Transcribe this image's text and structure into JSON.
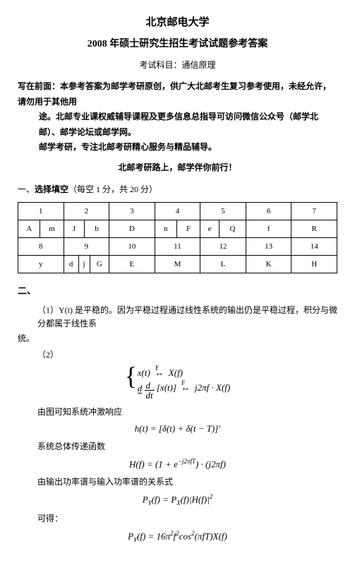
{
  "header": {
    "university": "北京邮电大学",
    "title": "2008 年硕士研究生招生考试试题参考答案",
    "subject_label": "考试科目：",
    "subject": "通信原理"
  },
  "preface": {
    "line1": "写在前面：本参考答案为邮学考研原创，供广大北邮考生复习参考使用，未经允许，请勿用于其他用",
    "line2": "途。北邮专业课权威辅导课程及更多信息总指导可访问微信公众号（邮学北邮）、邮学论坛或邮学网。",
    "line3": "邮学考研，专注北邮考研精心服务与精品辅导。",
    "slogan": "北邮考研路上，邮学伴你前行！"
  },
  "section1": {
    "heading_prefix": "一、",
    "heading_bold": "选择填空",
    "heading_suffix": "（每空 1 分，共 20 分）",
    "rows": [
      [
        {
          "num": "1",
          "subs": []
        },
        {
          "num": "2",
          "subs": []
        },
        {
          "num": "3",
          "subs": []
        },
        {
          "num": "4",
          "subs": []
        },
        {
          "num": "5",
          "subs": []
        },
        {
          "num": "6",
          "subs": []
        },
        {
          "num": "7",
          "subs": []
        }
      ],
      [
        {
          "num": "A",
          "subs": [
            "m"
          ]
        },
        {
          "num": "J",
          "subs": [
            "b"
          ]
        },
        {
          "num": "D",
          "subs": []
        },
        {
          "num": "n",
          "subs": [
            "F"
          ]
        },
        {
          "num": "e",
          "subs": [
            "Q"
          ]
        },
        {
          "num": "f",
          "subs": []
        },
        {
          "num": "R",
          "subs": []
        }
      ],
      [
        {
          "num": "8",
          "subs": []
        },
        {
          "num": "9",
          "subs": []
        },
        {
          "num": "10",
          "subs": []
        },
        {
          "num": "11",
          "subs": []
        },
        {
          "num": "12",
          "subs": []
        },
        {
          "num": "13",
          "subs": []
        },
        {
          "num": "14",
          "subs": []
        }
      ],
      [
        {
          "num": "y",
          "subs": []
        },
        {
          "num": "d",
          "subs": [
            "j",
            "G"
          ]
        },
        {
          "num": "E",
          "subs": []
        },
        {
          "num": "M",
          "subs": []
        },
        {
          "num": "L",
          "subs": []
        },
        {
          "num": "K",
          "subs": []
        },
        {
          "num": "H",
          "subs": []
        }
      ]
    ]
  },
  "section2": {
    "heading": "二、",
    "q1_text": "（1）Y(t) 是平稳的。因为平稳过程通过线性系统的输出仍是平稳过程，积分与微分都属于线性系",
    "q1_text2": "统。",
    "q2_label": "（2）",
    "block1_line1": "x(t) ↔ X(f)",
    "block1_line2_a": "d",
    "block1_line2_b": "dt",
    "block1_line2_c": "[x(t)] ↔ j2πf · X(f)",
    "arrow_sup": "F",
    "line_impulse": "由图可知系统冲激响应",
    "formula_h": "h(t) = [δ(t) + δ(t − T)]′",
    "line_transfer": "系统总体传递函数",
    "formula_H": "H(f) = (1 + e",
    "formula_H_exp": "−j2πfT",
    "formula_H_tail": ") · (j2πf)",
    "line_relation": "由输出功率谱与输入功率谱的关系式",
    "formula_Py": "P",
    "formula_Py_sub": "Y",
    "formula_Py_mid": "(f) = P",
    "formula_Py_sub2": "X",
    "formula_Py_tail": "(f)|H(f)|",
    "formula_Py_sup": "2",
    "line_get": "可得：",
    "formula_final_a": "P",
    "formula_final_sub": "Y",
    "formula_final_b": "(f) = 16π",
    "formula_final_sup1": "2",
    "formula_final_c": "f",
    "formula_final_sup2": "2",
    "formula_final_d": "cos",
    "formula_final_sup3": "2",
    "formula_final_e": "(πfT)X(f)"
  }
}
